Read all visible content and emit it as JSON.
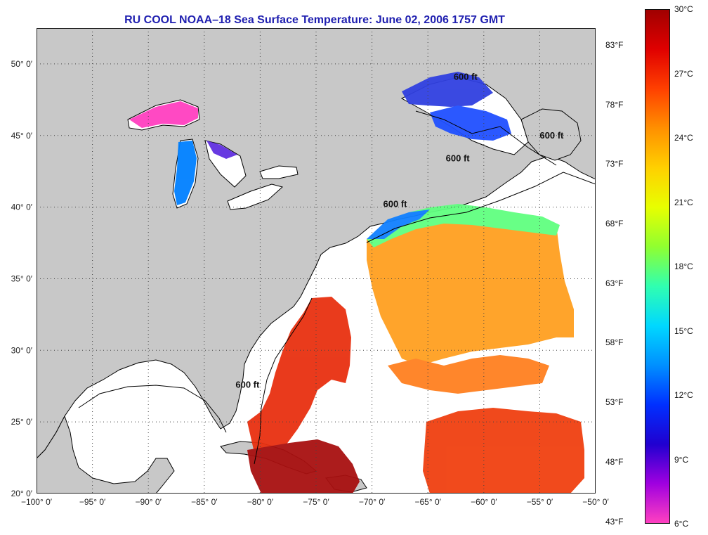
{
  "title": "RU COOL  NOAA–18  Sea Surface Temperature:  June 02, 2006 1757 GMT",
  "map": {
    "lon_range": [
      -100,
      -50
    ],
    "lat_range": [
      20,
      52.5
    ],
    "lon_ticks": [
      {
        "lon": -100,
        "label": "−100° 0′"
      },
      {
        "lon": -95,
        "label": "−95° 0′"
      },
      {
        "lon": -90,
        "label": "−90° 0′"
      },
      {
        "lon": -85,
        "label": "−85° 0′"
      },
      {
        "lon": -80,
        "label": "−80° 0′"
      },
      {
        "lon": -75,
        "label": "−75° 0′"
      },
      {
        "lon": -70,
        "label": "−70° 0′"
      },
      {
        "lon": -65,
        "label": "−65° 0′"
      },
      {
        "lon": -60,
        "label": "−60° 0′"
      },
      {
        "lon": -55,
        "label": "−55° 0′"
      },
      {
        "lon": -50,
        "label": "−50° 0′"
      }
    ],
    "lat_ticks": [
      {
        "lat": 20,
        "label": "20° 0′"
      },
      {
        "lat": 25,
        "label": "25° 0′"
      },
      {
        "lat": 30,
        "label": "30° 0′"
      },
      {
        "lat": 35,
        "label": "35° 0′"
      },
      {
        "lat": 40,
        "label": "40° 0′"
      },
      {
        "lat": 45,
        "label": "45° 0′"
      },
      {
        "lat": 50,
        "label": "50° 0′"
      }
    ],
    "contour_labels": [
      {
        "text": "600 ft",
        "lon": -62.7,
        "lat": 48.9
      },
      {
        "text": "600 ft",
        "lon": -55.0,
        "lat": 44.8
      },
      {
        "text": "600 ft",
        "lon": -63.4,
        "lat": 43.2
      },
      {
        "text": "600 ft",
        "lon": -69.0,
        "lat": 40.0
      },
      {
        "text": "600 ft",
        "lon": -82.2,
        "lat": 27.4
      }
    ],
    "colors": {
      "land": "#c8c8c8",
      "ocean_nodata": "#ffffff",
      "grid": "#444444"
    }
  },
  "colorbar": {
    "celsius_range": [
      6,
      30
    ],
    "celsius_labels": [
      {
        "value": 30,
        "label": "30°C"
      },
      {
        "value": 27,
        "label": "27°C"
      },
      {
        "value": 24,
        "label": "24°C"
      },
      {
        "value": 21,
        "label": "21°C"
      },
      {
        "value": 18,
        "label": "18°C"
      },
      {
        "value": 15,
        "label": "15°C"
      },
      {
        "value": 12,
        "label": "12°C"
      },
      {
        "value": 9,
        "label": "9°C"
      },
      {
        "value": 6,
        "label": "6°C"
      }
    ],
    "fahrenheit_labels": [
      {
        "value": 83,
        "label": "83°F"
      },
      {
        "value": 78,
        "label": "78°F"
      },
      {
        "value": 73,
        "label": "73°F"
      },
      {
        "value": 68,
        "label": "68°F"
      },
      {
        "value": 63,
        "label": "63°F"
      },
      {
        "value": 58,
        "label": "58°F"
      },
      {
        "value": 53,
        "label": "53°F"
      },
      {
        "value": 48,
        "label": "48°F"
      },
      {
        "value": 43,
        "label": "43°F"
      }
    ],
    "gradient": [
      "#a00000",
      "#e00000",
      "#ff4000",
      "#ff9000",
      "#ffd000",
      "#e8ff00",
      "#90ff30",
      "#30ffb0",
      "#00d8ff",
      "#0090ff",
      "#0030ff",
      "#2000d0",
      "#a000e0",
      "#ff40c0"
    ]
  }
}
